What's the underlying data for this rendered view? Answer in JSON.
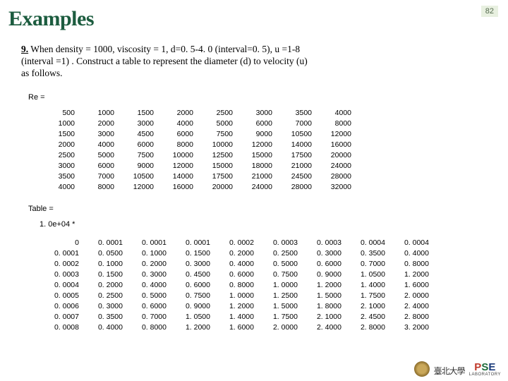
{
  "slide": {
    "number": "82"
  },
  "title": "Examples",
  "task": {
    "num": "9.",
    "text": "When density = 1000, viscosity = 1, d=0. 5-4. 0 (interval=0. 5), u =1-8 (interval =1) . Construct a table to represent the diameter (d) to velocity (u) as follows."
  },
  "relabel": "Re =",
  "re": {
    "type": "table",
    "rows": [
      [
        "500",
        "1000",
        "1500",
        "2000",
        "2500",
        "3000",
        "3500",
        "4000"
      ],
      [
        "1000",
        "2000",
        "3000",
        "4000",
        "5000",
        "6000",
        "7000",
        "8000"
      ],
      [
        "1500",
        "3000",
        "4500",
        "6000",
        "7500",
        "9000",
        "10500",
        "12000"
      ],
      [
        "2000",
        "4000",
        "6000",
        "8000",
        "10000",
        "12000",
        "14000",
        "16000"
      ],
      [
        "2500",
        "5000",
        "7500",
        "10000",
        "12500",
        "15000",
        "17500",
        "20000"
      ],
      [
        "3000",
        "6000",
        "9000",
        "12000",
        "15000",
        "18000",
        "21000",
        "24000"
      ],
      [
        "3500",
        "7000",
        "10500",
        "14000",
        "17500",
        "21000",
        "24500",
        "28000"
      ],
      [
        "4000",
        "8000",
        "12000",
        "16000",
        "20000",
        "24000",
        "28000",
        "32000"
      ]
    ],
    "font_size": 10.5,
    "text_color": "#000000"
  },
  "tablelabel": "Table =",
  "mult": "1. 0e+04 *",
  "tab": {
    "type": "table",
    "rows": [
      [
        "0",
        "0. 0001",
        "0. 0001",
        "0. 0001",
        "0. 0002",
        "0. 0003",
        "0. 0003",
        "0. 0004",
        "0. 0004"
      ],
      [
        "0. 0001",
        "0. 0500",
        "0. 1000",
        "0. 1500",
        "0. 2000",
        "0. 2500",
        "0. 3000",
        "0. 3500",
        "0. 4000"
      ],
      [
        "0. 0002",
        "0. 1000",
        "0. 2000",
        "0. 3000",
        "0. 4000",
        "0. 5000",
        "0. 6000",
        "0. 7000",
        "0. 8000"
      ],
      [
        "0. 0003",
        "0. 1500",
        "0. 3000",
        "0. 4500",
        "0. 6000",
        "0. 7500",
        "0. 9000",
        "1. 0500",
        "1. 2000"
      ],
      [
        "0. 0004",
        "0. 2000",
        "0. 4000",
        "0. 6000",
        "0. 8000",
        "1. 0000",
        "1. 2000",
        "1. 4000",
        "1. 6000"
      ],
      [
        "0. 0005",
        "0. 2500",
        "0. 5000",
        "0. 7500",
        "1. 0000",
        "1. 2500",
        "1. 5000",
        "1. 7500",
        "2. 0000"
      ],
      [
        "0. 0006",
        "0. 3000",
        "0. 6000",
        "0. 9000",
        "1. 2000",
        "1. 5000",
        "1. 8000",
        "2. 1000",
        "2. 4000"
      ],
      [
        "0. 0007",
        "0. 3500",
        "0. 7000",
        "1. 0500",
        "1. 4000",
        "1. 7500",
        "2. 1000",
        "2. 4500",
        "2. 8000"
      ],
      [
        "0. 0008",
        "0. 4000",
        "0. 8000",
        "1. 2000",
        "1. 6000",
        "2. 0000",
        "2. 4000",
        "2. 8000",
        "3. 2000"
      ]
    ],
    "font_size": 10.5,
    "text_color": "#000000"
  },
  "footer": {
    "uni_cn": "臺北大學",
    "pse_p": "P",
    "pse_s": "S",
    "pse_e": "E",
    "lab": "LABORATORY"
  },
  "colors": {
    "title": "#1c5c3f",
    "background": "#ffffff",
    "slidenum_bg": "#e8f0e0",
    "slidenum_fg": "#556b4e"
  }
}
